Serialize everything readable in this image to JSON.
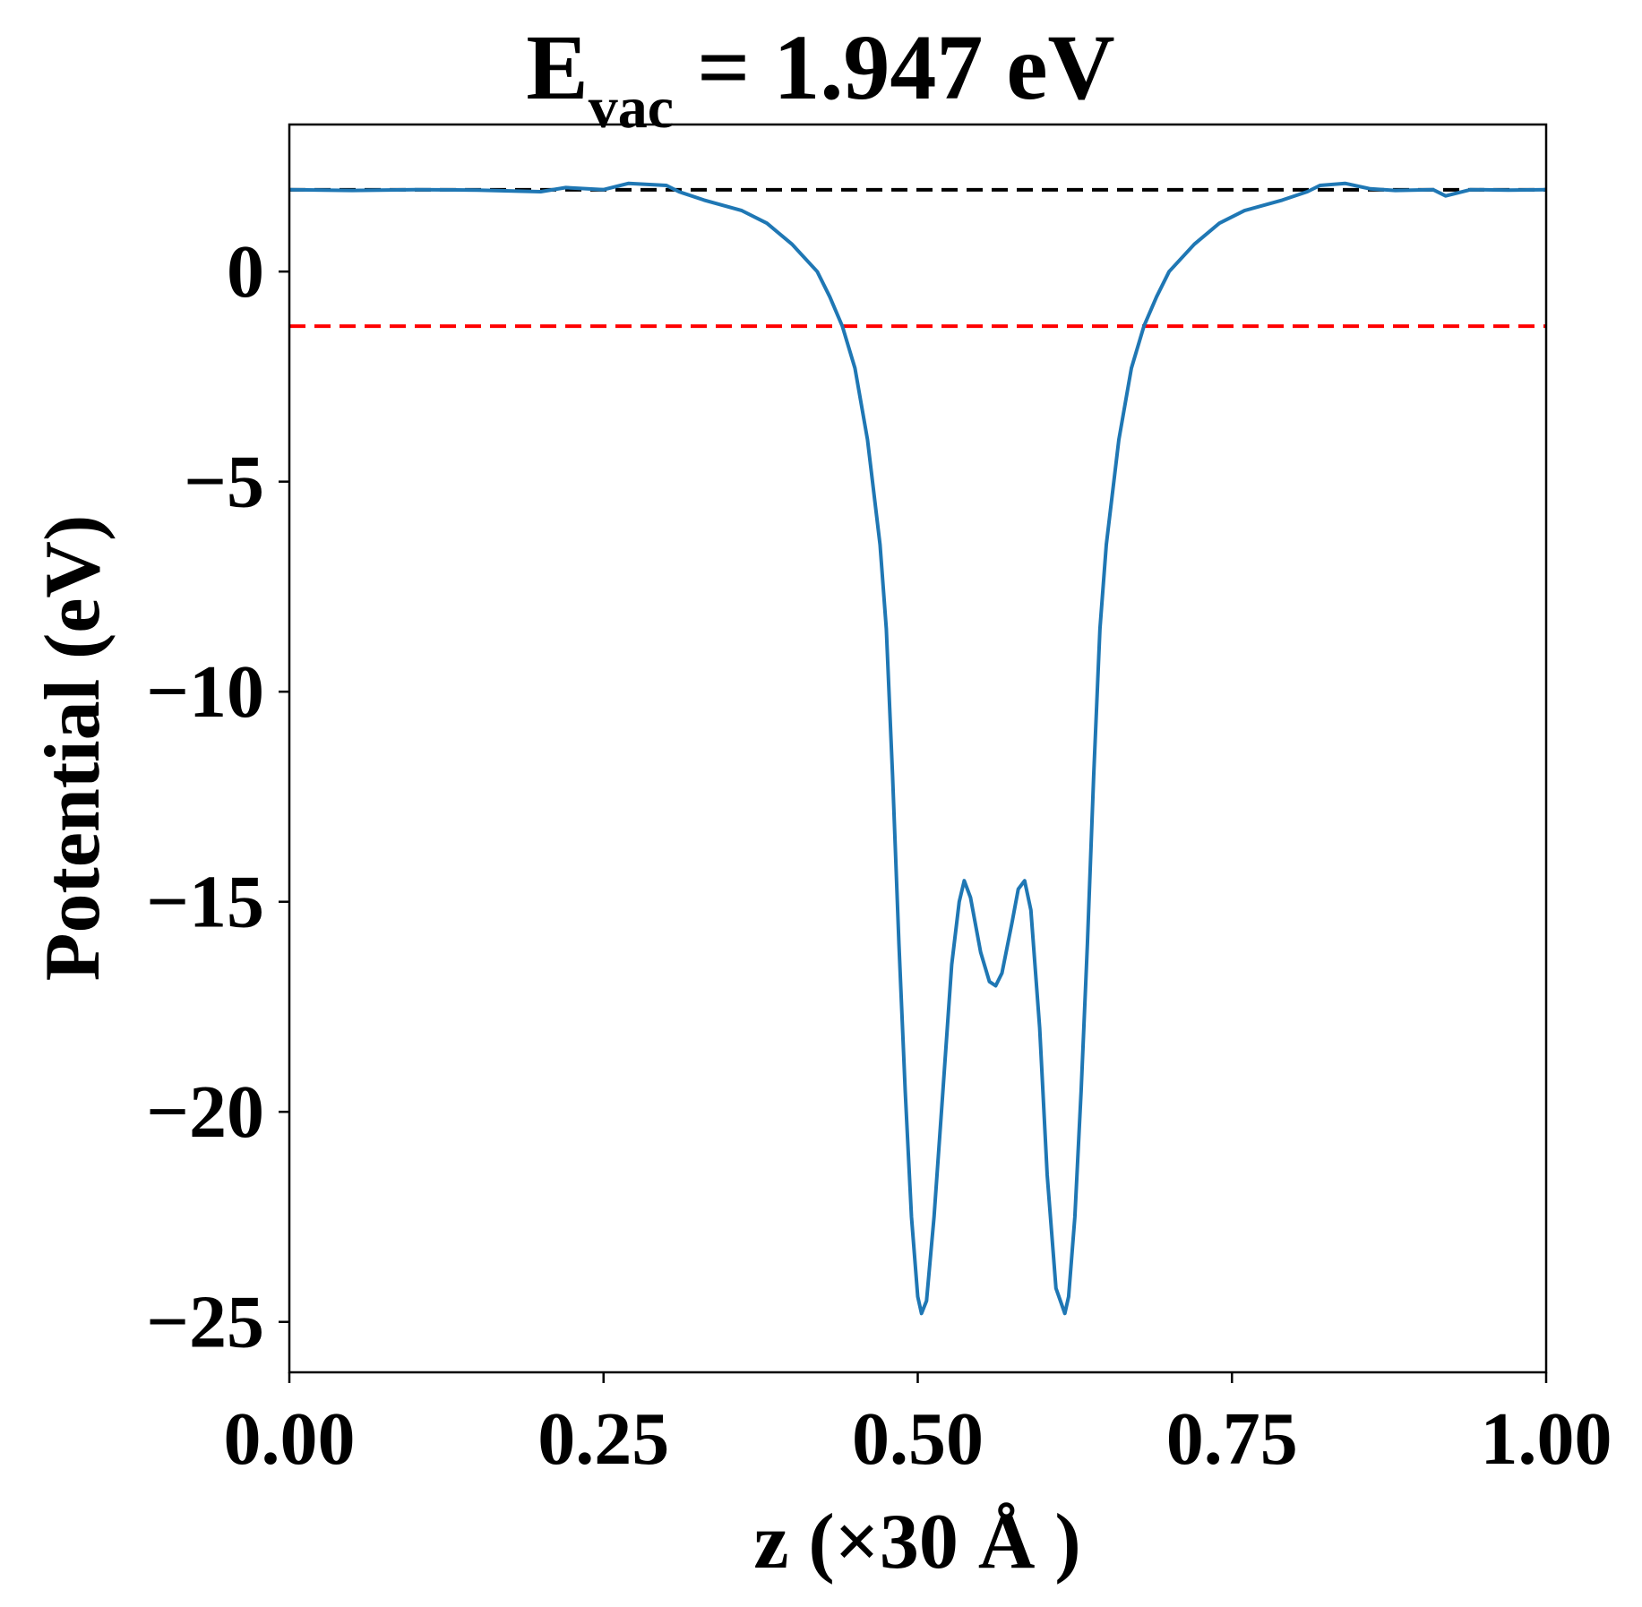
{
  "chart_data": {
    "type": "line",
    "title": {
      "main": "E",
      "subscript": "vac",
      "suffix": " = 1.947 eV"
    },
    "xlabel": "z (×30 Å )",
    "ylabel": "Potential (eV)",
    "xlim": [
      0,
      1
    ],
    "ylim": [
      -26.2,
      3.5
    ],
    "xticks": [
      0.0,
      0.25,
      0.5,
      0.75,
      1.0
    ],
    "xtick_labels": [
      "0.00",
      "0.25",
      "0.50",
      "0.75",
      "1.00"
    ],
    "yticks": [
      0,
      -5,
      -10,
      -15,
      -20,
      -25
    ],
    "ytick_labels": [
      "0",
      "−5",
      "−10",
      "−15",
      "−20",
      "−25"
    ],
    "grid": false,
    "reference_lines": [
      {
        "y": 1.947,
        "color": "#000000",
        "style": "dashed"
      },
      {
        "y": -1.3,
        "color": "#ff0000",
        "style": "dashed"
      }
    ],
    "series": [
      {
        "color": "#1f77b4",
        "points": [
          [
            0.0,
            1.95
          ],
          [
            0.05,
            1.93
          ],
          [
            0.1,
            1.95
          ],
          [
            0.15,
            1.94
          ],
          [
            0.2,
            1.9
          ],
          [
            0.22,
            2.0
          ],
          [
            0.25,
            1.95
          ],
          [
            0.27,
            2.1
          ],
          [
            0.3,
            2.05
          ],
          [
            0.31,
            1.9
          ],
          [
            0.33,
            1.7
          ],
          [
            0.36,
            1.45
          ],
          [
            0.38,
            1.15
          ],
          [
            0.4,
            0.65
          ],
          [
            0.42,
            0.0
          ],
          [
            0.43,
            -0.6
          ],
          [
            0.44,
            -1.3
          ],
          [
            0.45,
            -2.3
          ],
          [
            0.46,
            -4.0
          ],
          [
            0.47,
            -6.5
          ],
          [
            0.475,
            -8.5
          ],
          [
            0.48,
            -12.0
          ],
          [
            0.485,
            -16.0
          ],
          [
            0.49,
            -19.5
          ],
          [
            0.495,
            -22.5
          ],
          [
            0.5,
            -24.4
          ],
          [
            0.503,
            -24.8
          ],
          [
            0.507,
            -24.5
          ],
          [
            0.513,
            -22.5
          ],
          [
            0.52,
            -19.5
          ],
          [
            0.527,
            -16.5
          ],
          [
            0.533,
            -15.0
          ],
          [
            0.537,
            -14.5
          ],
          [
            0.542,
            -14.9
          ],
          [
            0.55,
            -16.2
          ],
          [
            0.557,
            -16.9
          ],
          [
            0.562,
            -17.0
          ],
          [
            0.567,
            -16.7
          ],
          [
            0.575,
            -15.5
          ],
          [
            0.58,
            -14.7
          ],
          [
            0.585,
            -14.5
          ],
          [
            0.59,
            -15.2
          ],
          [
            0.597,
            -18.0
          ],
          [
            0.603,
            -21.5
          ],
          [
            0.61,
            -24.2
          ],
          [
            0.617,
            -24.8
          ],
          [
            0.62,
            -24.4
          ],
          [
            0.625,
            -22.5
          ],
          [
            0.63,
            -19.5
          ],
          [
            0.635,
            -16.0
          ],
          [
            0.64,
            -12.0
          ],
          [
            0.645,
            -8.5
          ],
          [
            0.65,
            -6.5
          ],
          [
            0.66,
            -4.0
          ],
          [
            0.67,
            -2.3
          ],
          [
            0.68,
            -1.3
          ],
          [
            0.69,
            -0.6
          ],
          [
            0.7,
            0.0
          ],
          [
            0.72,
            0.65
          ],
          [
            0.74,
            1.15
          ],
          [
            0.76,
            1.45
          ],
          [
            0.79,
            1.7
          ],
          [
            0.81,
            1.9
          ],
          [
            0.82,
            2.05
          ],
          [
            0.84,
            2.1
          ],
          [
            0.86,
            1.97
          ],
          [
            0.88,
            1.93
          ],
          [
            0.91,
            1.95
          ],
          [
            0.92,
            1.8
          ],
          [
            0.94,
            1.95
          ],
          [
            0.97,
            1.94
          ],
          [
            1.0,
            1.95
          ]
        ]
      }
    ]
  }
}
